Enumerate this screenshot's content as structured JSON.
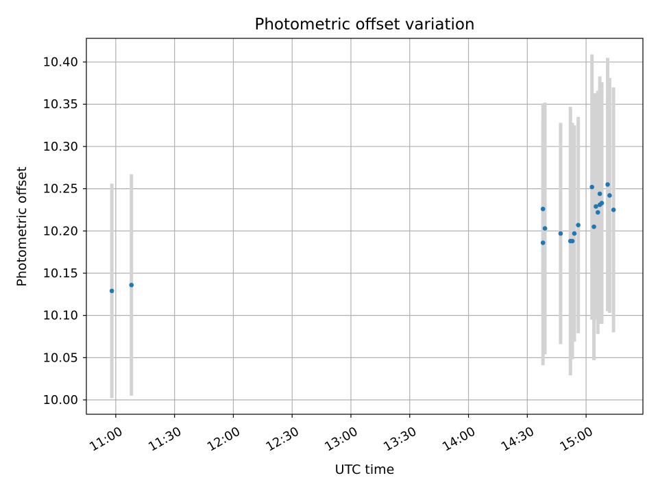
{
  "chart_data": {
    "type": "scatter",
    "title": "Photometric offset variation",
    "xlabel": "UTC time",
    "ylabel": "Photometric offset",
    "x_unit": "UTC time (HH:MM)",
    "xlim": [
      "10:45",
      "15:29"
    ],
    "ylim": [
      9.983,
      10.428
    ],
    "x_ticks": [
      "11:00",
      "11:30",
      "12:00",
      "12:30",
      "13:00",
      "13:30",
      "14:00",
      "14:30",
      "15:00"
    ],
    "y_ticks": [
      "10.00",
      "10.05",
      "10.10",
      "10.15",
      "10.20",
      "10.25",
      "10.30",
      "10.35",
      "10.40"
    ],
    "grid": true,
    "colors": {
      "points": "#1f77b4",
      "error_bars": "#d3d3d3",
      "grid": "#b0b0b0"
    },
    "series": [
      {
        "points": [
          {
            "x": "10:58",
            "y": 10.129,
            "err": 0.127
          },
          {
            "x": "11:08",
            "y": 10.136,
            "err": 0.131
          },
          {
            "x": "14:38",
            "y": 10.226,
            "err": 0.125
          },
          {
            "x": "14:38",
            "y": 10.186,
            "err": 0.145
          },
          {
            "x": "14:39",
            "y": 10.203,
            "err": 0.149
          },
          {
            "x": "14:47",
            "y": 10.197,
            "err": 0.131
          },
          {
            "x": "14:52",
            "y": 10.188,
            "err": 0.159
          },
          {
            "x": "14:53",
            "y": 10.188,
            "err": 0.14
          },
          {
            "x": "14:54",
            "y": 10.197,
            "err": 0.128
          },
          {
            "x": "14:56",
            "y": 10.207,
            "err": 0.128
          },
          {
            "x": "15:03",
            "y": 10.252,
            "err": 0.157
          },
          {
            "x": "15:04",
            "y": 10.205,
            "err": 0.158
          },
          {
            "x": "15:05",
            "y": 10.229,
            "err": 0.134
          },
          {
            "x": "15:06",
            "y": 10.222,
            "err": 0.144
          },
          {
            "x": "15:07",
            "y": 10.244,
            "err": 0.139
          },
          {
            "x": "15:07",
            "y": 10.231,
            "err": 0.141
          },
          {
            "x": "15:08",
            "y": 10.233,
            "err": 0.143
          },
          {
            "x": "15:11",
            "y": 10.255,
            "err": 0.15
          },
          {
            "x": "15:12",
            "y": 10.242,
            "err": 0.139
          },
          {
            "x": "15:14",
            "y": 10.225,
            "err": 0.145
          }
        ]
      }
    ]
  }
}
